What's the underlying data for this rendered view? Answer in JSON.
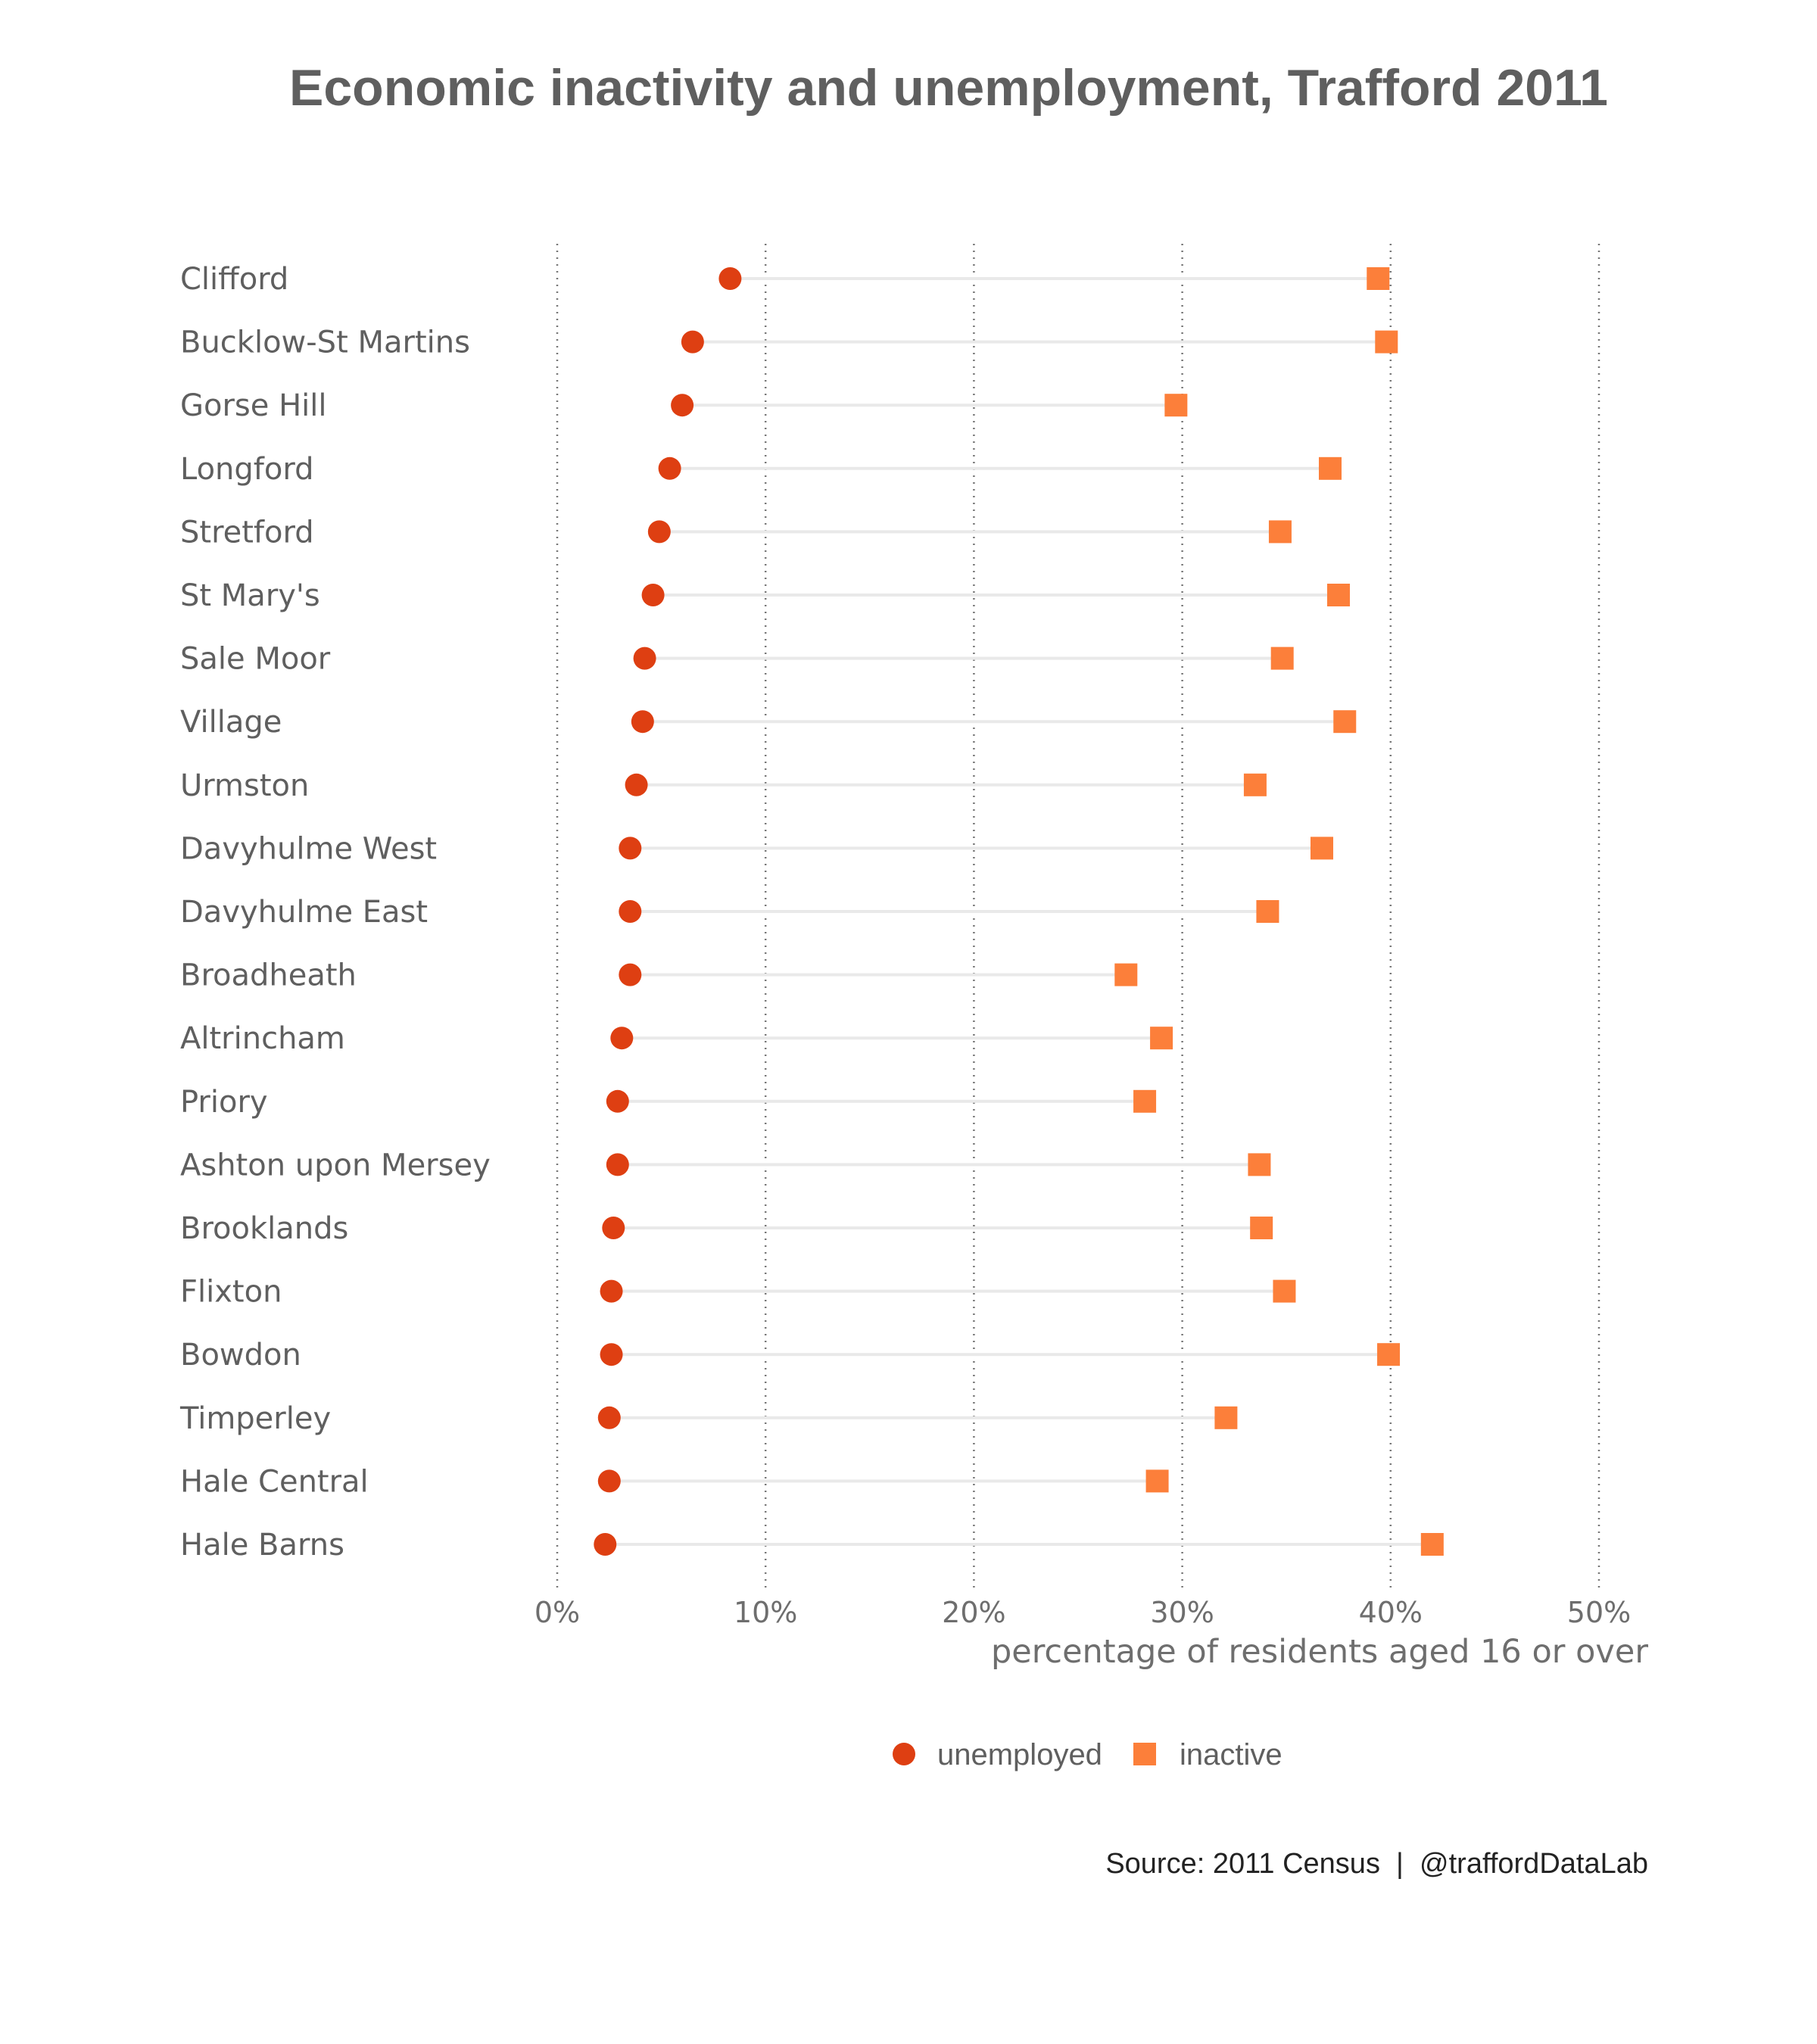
{
  "colors": {
    "unemployed": "#de3f12",
    "inactive": "#fc7f3a",
    "row_line": "#e9e9e9",
    "grid": "#777777"
  },
  "chart_data": {
    "type": "scatter",
    "title": "Economic inactivity and unemployment, Trafford 2011",
    "xlabel": "percentage of residents aged 16 or over",
    "ylabel": "",
    "xlim": [
      0,
      50
    ],
    "xticks": [
      0,
      10,
      20,
      30,
      40,
      50
    ],
    "xtick_labels": [
      "0%",
      "10%",
      "20%",
      "30%",
      "40%",
      "50%"
    ],
    "grid": "vertical dotted",
    "legend_position": "bottom",
    "categories": [
      "Clifford",
      "Bucklow-St Martins",
      "Gorse Hill",
      "Longford",
      "Stretford",
      "St Mary's",
      "Sale Moor",
      "Village",
      "Urmston",
      "Davyhulme West",
      "Davyhulme East",
      "Broadheath",
      "Altrincham",
      "Priory",
      "Ashton upon Mersey",
      "Brooklands",
      "Flixton",
      "Bowdon",
      "Timperley",
      "Hale Central",
      "Hale Barns"
    ],
    "series": [
      {
        "name": "unemployed",
        "marker": "circle",
        "values": [
          8.3,
          6.5,
          6.0,
          5.4,
          4.9,
          4.6,
          4.2,
          4.1,
          3.8,
          3.5,
          3.5,
          3.5,
          3.1,
          2.9,
          2.9,
          2.7,
          2.6,
          2.6,
          2.5,
          2.5,
          2.3
        ]
      },
      {
        "name": "inactive",
        "marker": "square",
        "values": [
          39.4,
          39.8,
          29.7,
          37.1,
          34.7,
          37.5,
          34.8,
          37.8,
          33.5,
          36.7,
          34.1,
          27.3,
          29.0,
          28.2,
          33.7,
          33.8,
          34.9,
          39.9,
          32.1,
          28.8,
          42.0
        ]
      }
    ]
  },
  "legend": {
    "unemployed_label": "unemployed",
    "inactive_label": "inactive"
  },
  "caption": "Source: 2011 Census  |  @traffordDataLab"
}
